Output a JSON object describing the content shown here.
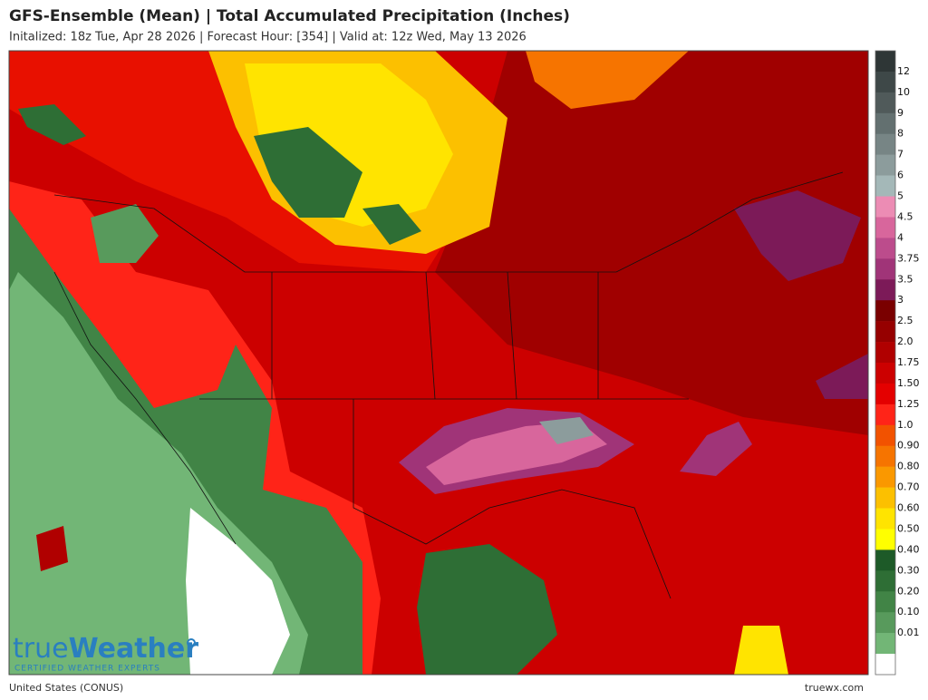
{
  "header": {
    "title": "GFS-Ensemble (Mean) | Total Accumulated Precipitation (Inches)",
    "subtitle": "Initalized: 18z Tue, Apr 28 2026  |  Forecast Hour: [354]  |  Valid at: 12z Wed, May 13 2026"
  },
  "legend": {
    "labels": [
      "12",
      "10",
      "9",
      "8",
      "7",
      "6",
      "5",
      "4.5",
      "4",
      "3.75",
      "3.5",
      "3",
      "2.5",
      "2.0",
      "1.75",
      "1.50",
      "1.25",
      "1.0",
      "0.90",
      "0.80",
      "0.70",
      "0.60",
      "0.50",
      "0.40",
      "0.30",
      "0.20",
      "0.10",
      "0.01"
    ],
    "colors": [
      "#2e3636",
      "#3e4848",
      "#505a5a",
      "#637070",
      "#778585",
      "#8c9c9c",
      "#a4b8b8",
      "#ec8cb4",
      "#d8669c",
      "#bc4c8c",
      "#a03478",
      "#7c1a58",
      "#7a0000",
      "#960000",
      "#b00000",
      "#cc0000",
      "#e40000",
      "#ff2418",
      "#f25200",
      "#f67400",
      "#fa9800",
      "#fcc000",
      "#ffe400",
      "#ffff00",
      "#1d5a28",
      "#2e6e35",
      "#418446",
      "#589a5c",
      "#72b676",
      "#ffffff"
    ]
  },
  "logo": {
    "name_a": "true",
    "name_b": "Weather",
    "tagline": "CERTIFIED WEATHER EXPERTS"
  },
  "footer": {
    "region": "United States (CONUS)",
    "site": "truewx.com"
  }
}
